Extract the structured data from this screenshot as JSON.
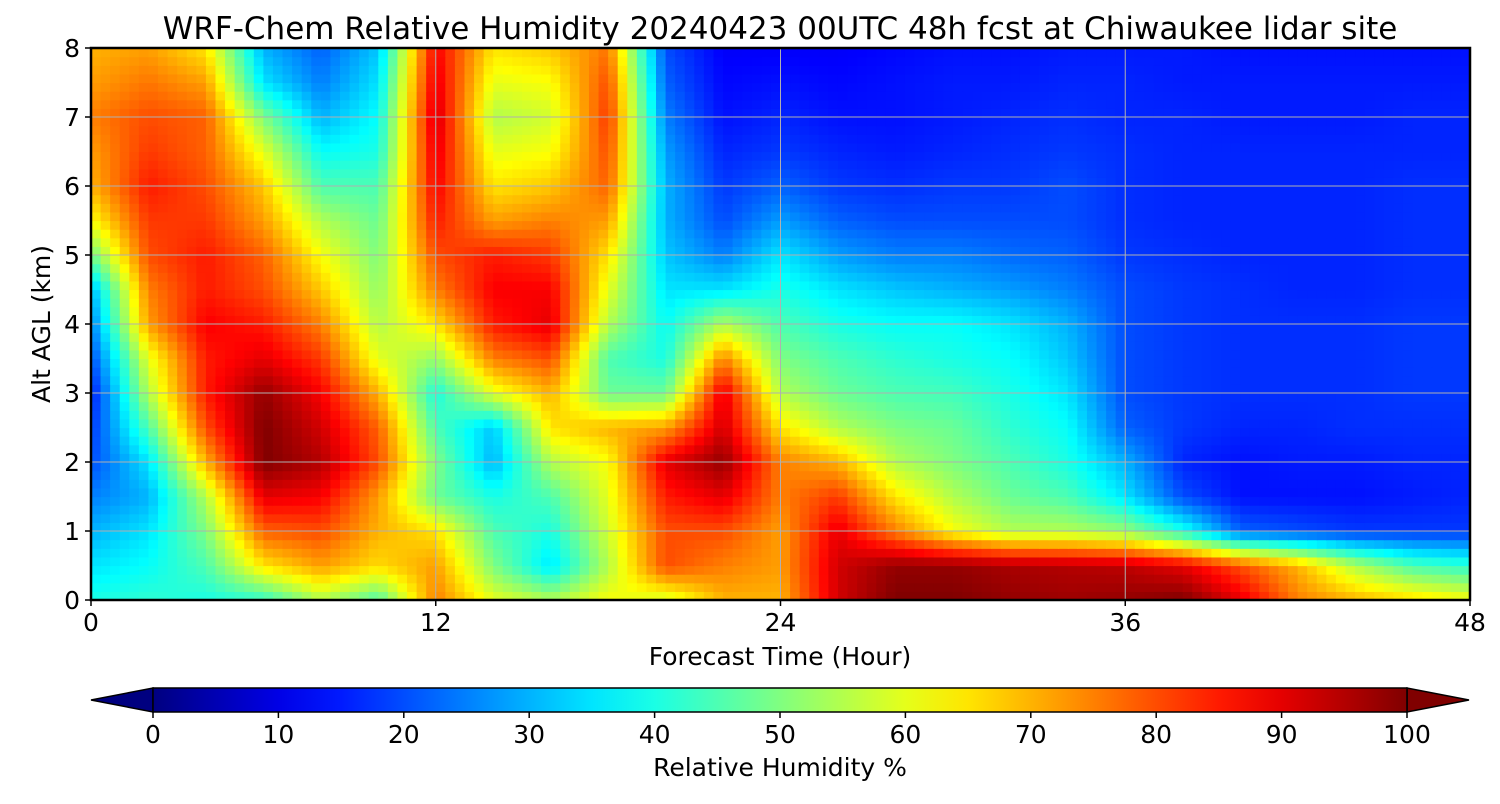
{
  "chart_data": {
    "type": "heatmap",
    "title": "WRF-Chem Relative Humidity 20240423 00UTC 48h fcst at Chiwaukee lidar site",
    "xlabel": "Forecast Time (Hour)",
    "ylabel": "Alt AGL (km)",
    "x_ticks": [
      "0",
      "12",
      "24",
      "36",
      "48"
    ],
    "y_ticks": [
      "0",
      "1",
      "2",
      "3",
      "4",
      "5",
      "6",
      "7",
      "8"
    ],
    "xlim": [
      0,
      48
    ],
    "ylim": [
      0,
      8
    ],
    "grid": true,
    "colormap": "jet",
    "colorbar": {
      "label": "Relative Humidity %",
      "ticks": [
        "0",
        "10",
        "20",
        "30",
        "40",
        "50",
        "60",
        "70",
        "80",
        "90",
        "100"
      ],
      "range": [
        0,
        100
      ],
      "extend": "both"
    },
    "x_hours": [
      0,
      2,
      4,
      6,
      8,
      10,
      12,
      14,
      16,
      18,
      20,
      22,
      24,
      26,
      28,
      30,
      32,
      34,
      36,
      38,
      40,
      42,
      44,
      46,
      48
    ],
    "y_km": [
      0,
      0.5,
      1,
      1.5,
      2,
      2.5,
      3,
      3.5,
      4,
      4.5,
      5,
      5.5,
      6,
      6.5,
      7,
      7.5,
      8
    ],
    "rh_percent": [
      [
        40,
        42,
        40,
        42,
        55,
        45,
        75,
        60,
        55,
        62,
        58,
        70,
        70,
        92,
        100,
        100,
        98,
        97,
        98,
        100,
        90,
        75,
        70,
        66,
        62
      ],
      [
        35,
        38,
        45,
        65,
        72,
        66,
        72,
        50,
        35,
        55,
        80,
        75,
        72,
        92,
        98,
        98,
        96,
        95,
        94,
        90,
        80,
        70,
        55,
        45,
        42
      ],
      [
        30,
        35,
        50,
        78,
        80,
        70,
        65,
        45,
        40,
        58,
        80,
        80,
        72,
        90,
        75,
        62,
        55,
        55,
        52,
        40,
        22,
        20,
        18,
        18,
        18
      ],
      [
        25,
        30,
        55,
        90,
        88,
        72,
        48,
        40,
        45,
        60,
        85,
        90,
        75,
        82,
        65,
        55,
        48,
        45,
        35,
        20,
        14,
        14,
        14,
        15,
        16
      ],
      [
        20,
        35,
        70,
        100,
        95,
        80,
        50,
        30,
        55,
        62,
        90,
        98,
        75,
        70,
        55,
        50,
        45,
        40,
        30,
        16,
        14,
        15,
        15,
        16,
        16
      ],
      [
        18,
        45,
        80,
        100,
        92,
        78,
        45,
        32,
        65,
        70,
        72,
        92,
        65,
        55,
        50,
        48,
        42,
        38,
        22,
        18,
        16,
        16,
        17,
        17,
        17
      ],
      [
        15,
        55,
        85,
        98,
        88,
        70,
        40,
        60,
        70,
        48,
        48,
        90,
        55,
        48,
        45,
        44,
        40,
        35,
        20,
        18,
        17,
        17,
        17,
        18,
        18
      ],
      [
        20,
        60,
        85,
        90,
        82,
        60,
        52,
        75,
        80,
        45,
        40,
        75,
        50,
        45,
        42,
        40,
        38,
        32,
        20,
        18,
        17,
        17,
        17,
        18,
        18
      ],
      [
        25,
        72,
        88,
        85,
        75,
        55,
        65,
        85,
        90,
        55,
        38,
        55,
        45,
        40,
        38,
        38,
        35,
        30,
        20,
        18,
        17,
        17,
        17,
        18,
        18
      ],
      [
        30,
        75,
        85,
        80,
        68,
        52,
        75,
        88,
        88,
        60,
        35,
        35,
        40,
        35,
        32,
        30,
        28,
        25,
        20,
        18,
        17,
        16,
        16,
        17,
        17
      ],
      [
        48,
        80,
        85,
        78,
        62,
        50,
        80,
        85,
        82,
        65,
        32,
        25,
        35,
        28,
        25,
        25,
        23,
        22,
        18,
        17,
        16,
        16,
        16,
        17,
        17
      ],
      [
        62,
        82,
        82,
        72,
        55,
        48,
        85,
        72,
        75,
        72,
        30,
        20,
        28,
        22,
        20,
        20,
        20,
        20,
        17,
        16,
        16,
        16,
        16,
        17,
        17
      ],
      [
        70,
        85,
        80,
        68,
        45,
        45,
        88,
        65,
        68,
        78,
        30,
        18,
        22,
        18,
        17,
        18,
        18,
        20,
        17,
        16,
        16,
        16,
        16,
        17,
        17
      ],
      [
        72,
        82,
        78,
        60,
        38,
        40,
        90,
        60,
        62,
        80,
        28,
        16,
        18,
        16,
        15,
        16,
        17,
        18,
        17,
        16,
        16,
        16,
        16,
        16,
        16
      ],
      [
        75,
        80,
        78,
        50,
        30,
        38,
        92,
        55,
        58,
        82,
        25,
        14,
        16,
        14,
        14,
        15,
        16,
        17,
        16,
        16,
        15,
        15,
        15,
        16,
        16
      ],
      [
        72,
        76,
        72,
        35,
        25,
        35,
        90,
        60,
        62,
        80,
        22,
        13,
        14,
        13,
        14,
        15,
        15,
        16,
        16,
        15,
        15,
        15,
        15,
        15,
        15
      ],
      [
        70,
        72,
        65,
        30,
        22,
        32,
        88,
        65,
        68,
        76,
        20,
        12,
        12,
        12,
        13,
        14,
        14,
        15,
        15,
        15,
        14,
        14,
        14,
        14,
        14
      ]
    ]
  }
}
